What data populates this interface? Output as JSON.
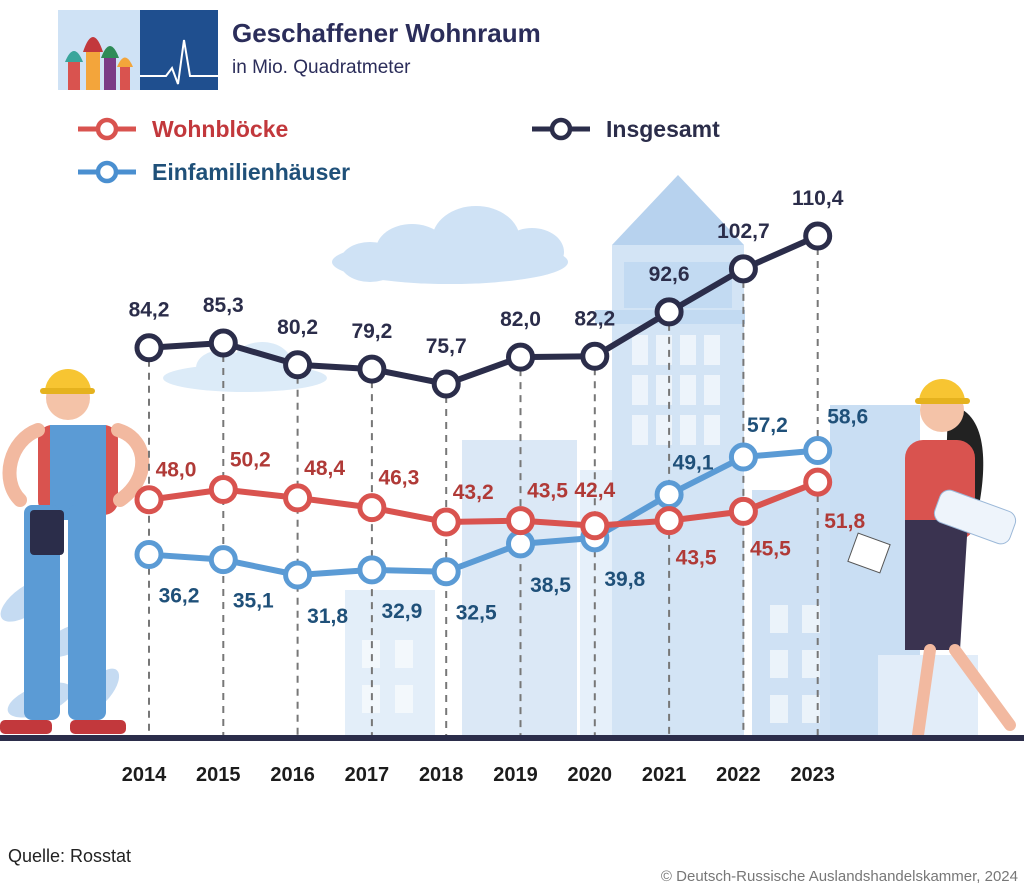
{
  "header": {
    "title": "Geschaffener Wohnraum",
    "subtitle": "in Mio. Quadratmeter",
    "logo_icon": "kremlin-domes-heartbeat-logo"
  },
  "legend": [
    {
      "series": "Wohnblöcke",
      "color": "#c2383c"
    },
    {
      "series": "Insgesamt",
      "color": "#2b2d4a"
    },
    {
      "series": "Einfamilienhäuser",
      "color": "#4a8fd0"
    }
  ],
  "colors": {
    "wohnbloecke_line": "#d9534f",
    "wohnbloecke_label": "#b03a37",
    "einfamilien_line": "#5b9bd5",
    "einfamilien_label": "#1f5079",
    "insgesamt_line": "#2b2d4a",
    "axis": "#2b2d4a",
    "drop_line": "#777777"
  },
  "chart_data": {
    "type": "line",
    "title": "Geschaffener Wohnraum",
    "subtitle": "in Mio. Quadratmeter",
    "xlabel": "",
    "ylabel": "",
    "x": [
      "2014",
      "2015",
      "2016",
      "2017",
      "2018",
      "2019",
      "2020",
      "2021",
      "2022",
      "2023"
    ],
    "series": [
      {
        "name": "Insgesamt",
        "values": [
          84.2,
          85.3,
          80.2,
          79.2,
          75.7,
          82.0,
          82.2,
          92.6,
          102.7,
          110.4
        ],
        "labels": [
          "84,2",
          "85,3",
          "80,2",
          "79,2",
          "75,7",
          "82,0",
          "82,2",
          "92,6",
          "102,7",
          "110,4"
        ]
      },
      {
        "name": "Wohnblöcke",
        "values": [
          48.0,
          50.2,
          48.4,
          46.3,
          43.2,
          43.5,
          42.4,
          43.5,
          45.5,
          51.8
        ],
        "labels": [
          "48,0",
          "50,2",
          "48,4",
          "46,3",
          "43,2",
          "43,5",
          "42,4",
          "43,5",
          "45,5",
          "51,8"
        ]
      },
      {
        "name": "Einfamilienhäuser",
        "values": [
          36.2,
          35.1,
          31.8,
          32.9,
          32.5,
          38.5,
          39.8,
          49.1,
          57.2,
          58.6
        ],
        "labels": [
          "36,2",
          "35,1",
          "31,8",
          "32,9",
          "32,5",
          "38,5",
          "39,8",
          "49,1",
          "57,2",
          "58,6"
        ]
      }
    ],
    "grid": false,
    "legend_position": "top"
  },
  "footer": {
    "source": "Quelle: Rosstat",
    "copyright": "© Deutsch-Russische Auslandshandelskammer, 2024"
  }
}
